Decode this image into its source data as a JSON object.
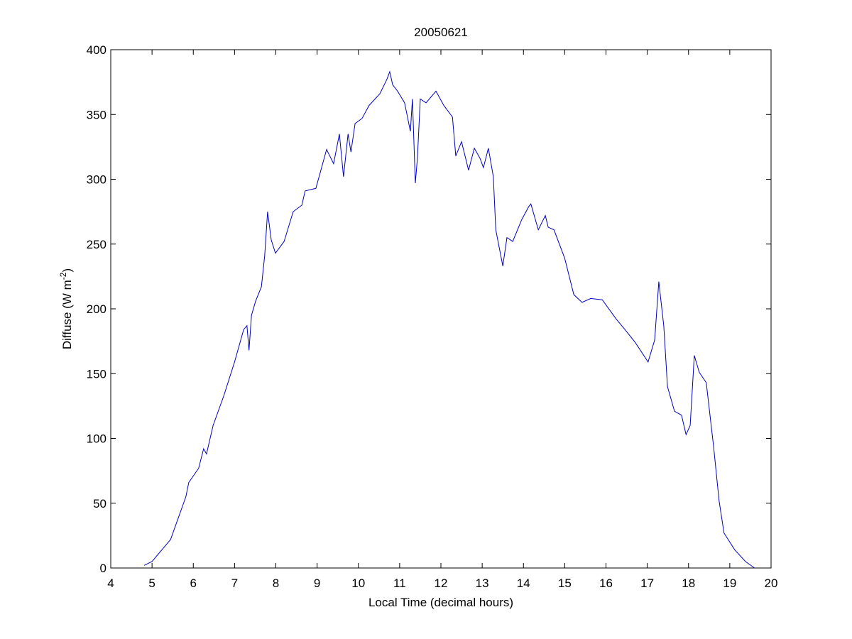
{
  "chart_data": {
    "type": "line",
    "title": "20050621",
    "xlabel": "Local Time (decimal hours)",
    "ylabel": [
      "Diffuse (W m",
      "-2",
      ")"
    ],
    "x": [
      4.81,
      5.0,
      5.45,
      5.82,
      5.89,
      6.13,
      6.25,
      6.32,
      6.48,
      6.74,
      7.0,
      7.22,
      7.3,
      7.35,
      7.41,
      7.51,
      7.65,
      7.73,
      7.8,
      7.89,
      7.99,
      8.2,
      8.42,
      8.63,
      8.71,
      8.97,
      9.23,
      9.4,
      9.54,
      9.64,
      9.75,
      9.82,
      9.92,
      10.09,
      10.26,
      10.52,
      10.69,
      10.76,
      10.83,
      10.95,
      11.12,
      11.26,
      11.31,
      11.38,
      11.43,
      11.5,
      11.64,
      11.88,
      12.07,
      12.28,
      12.36,
      12.5,
      12.67,
      12.81,
      12.95,
      13.03,
      13.15,
      13.27,
      13.33,
      13.5,
      13.6,
      13.74,
      13.96,
      14.13,
      14.18,
      14.36,
      14.53,
      14.6,
      14.74,
      15.0,
      15.22,
      15.42,
      15.63,
      15.91,
      16.25,
      16.46,
      16.71,
      17.02,
      17.18,
      17.28,
      17.4,
      17.49,
      17.66,
      17.83,
      17.94,
      18.04,
      18.14,
      18.26,
      18.43,
      18.61,
      18.74,
      18.86,
      19.12,
      19.38,
      19.6
    ],
    "series": [
      {
        "color": "#0000c0",
        "values": [
          2,
          5,
          22,
          55,
          66,
          77,
          92,
          88,
          110,
          133,
          159,
          184,
          187,
          168,
          195,
          206,
          217,
          241,
          275,
          253,
          243,
          252,
          275,
          280,
          291,
          293,
          323,
          312,
          335,
          302,
          335,
          321,
          343,
          347,
          357,
          366,
          377,
          383,
          373,
          368,
          359,
          337,
          362,
          297,
          316,
          362,
          359,
          368,
          357,
          348,
          318,
          329,
          307,
          324,
          316,
          309,
          324,
          302,
          261,
          233,
          255,
          252,
          269,
          279,
          281,
          261,
          272,
          263,
          261,
          239,
          211,
          205,
          208,
          207,
          192,
          184,
          174,
          159,
          176,
          221,
          187,
          140,
          121,
          118,
          103,
          110,
          164,
          151,
          143,
          93,
          52,
          27,
          14,
          5,
          0
        ]
      }
    ],
    "xlim": [
      4,
      20
    ],
    "xticks": [
      4,
      5,
      6,
      7,
      8,
      9,
      10,
      11,
      12,
      13,
      14,
      15,
      16,
      17,
      18,
      19,
      20
    ],
    "ylim": [
      0,
      400
    ],
    "yticks": [
      0,
      50,
      100,
      150,
      200,
      250,
      300,
      350,
      400
    ]
  }
}
